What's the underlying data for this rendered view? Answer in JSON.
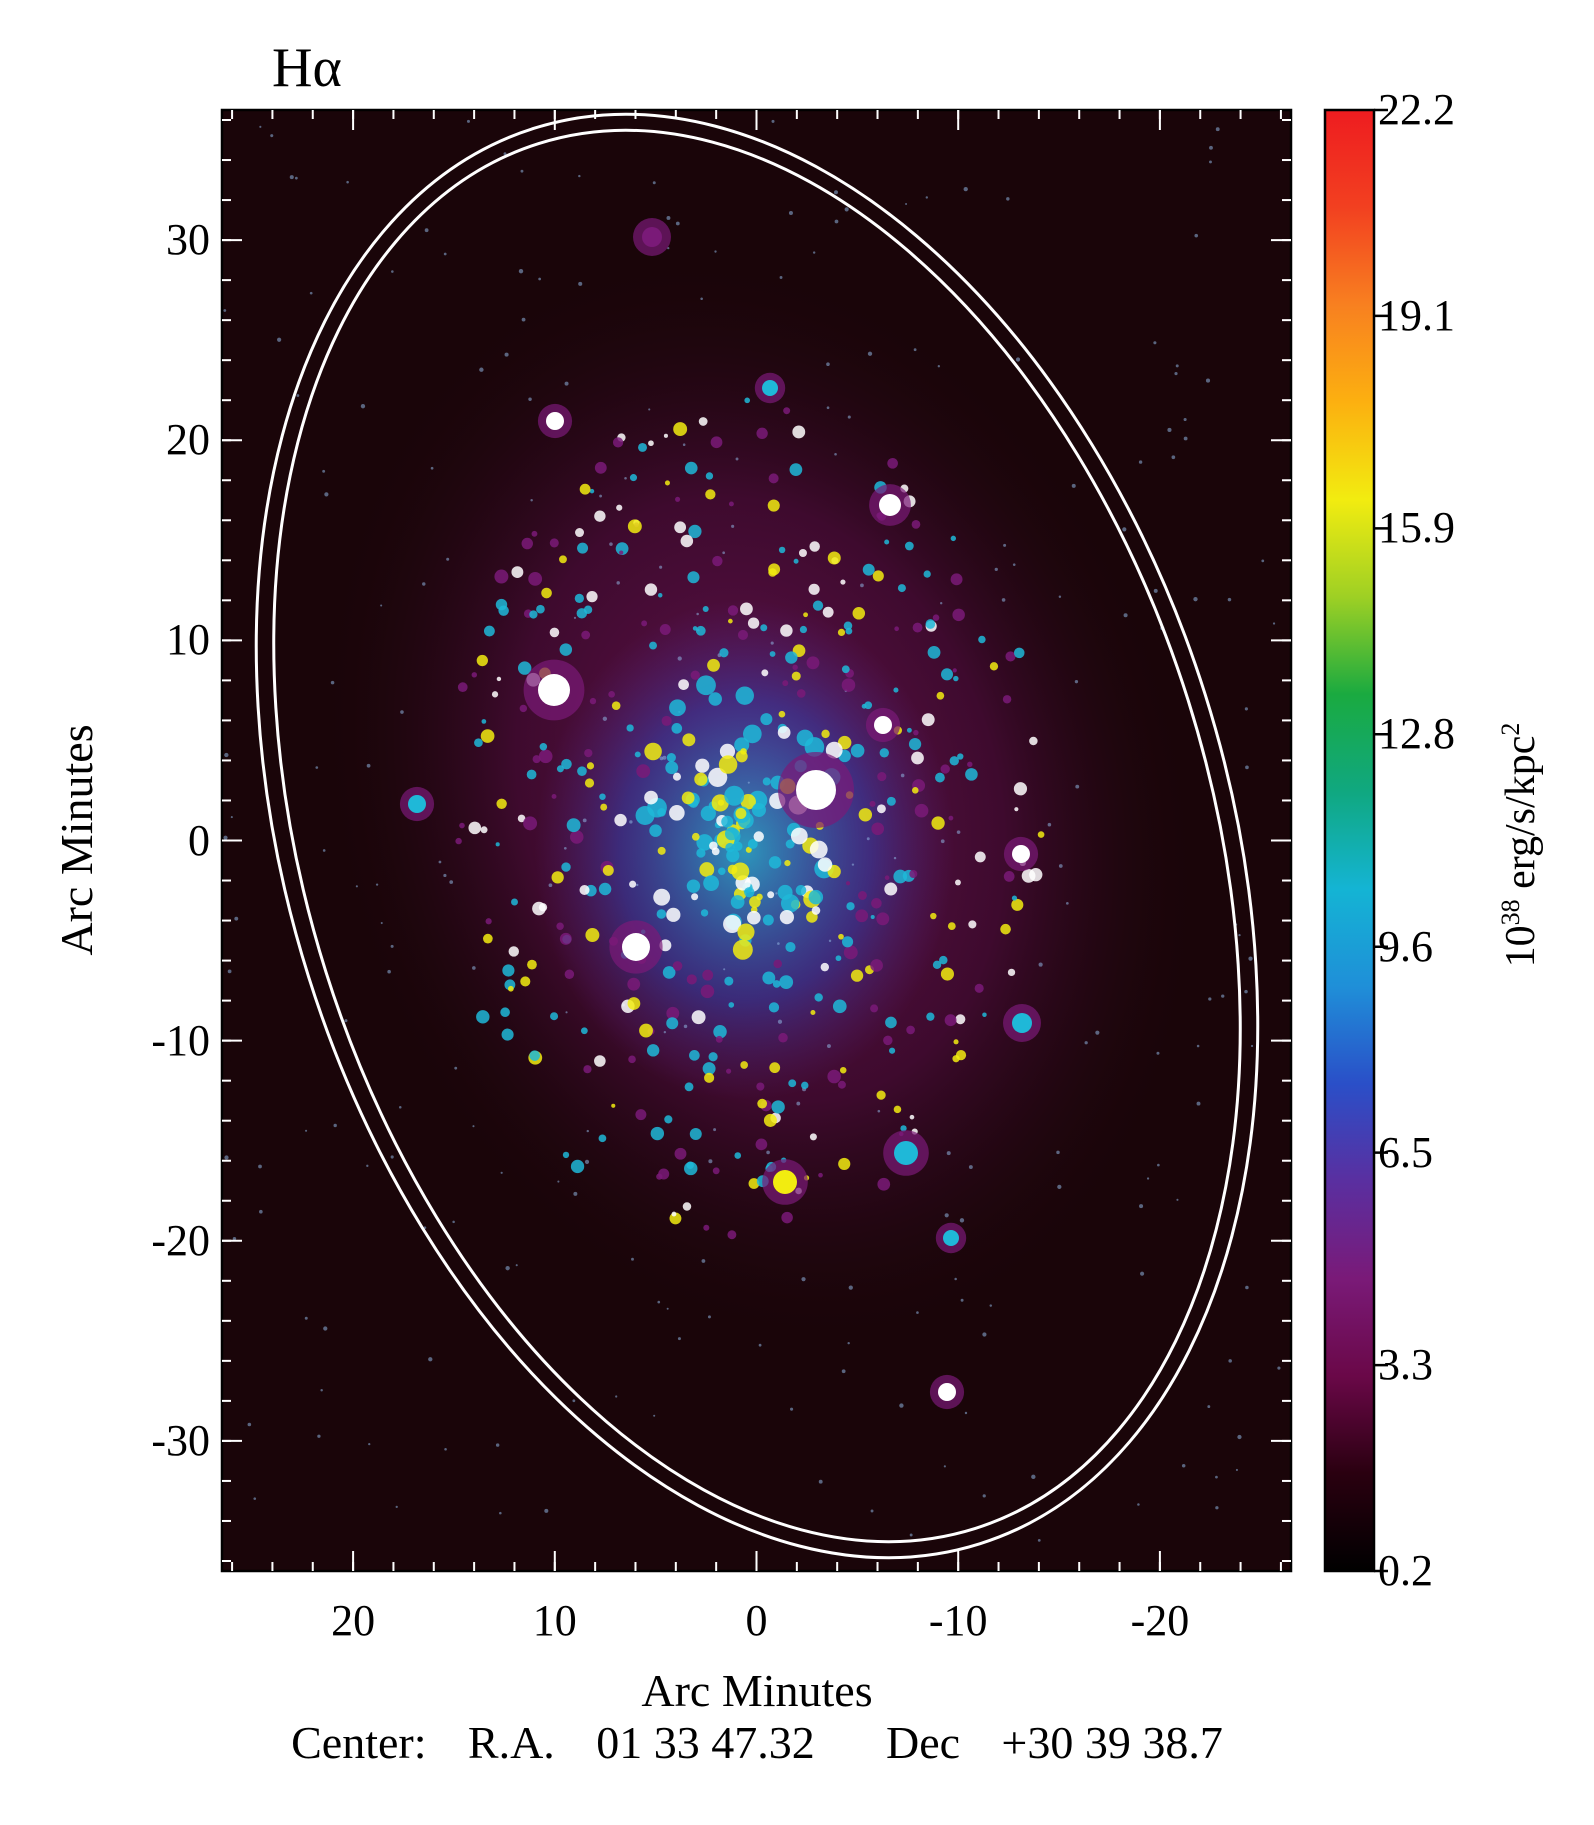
{
  "panel_title": "Hα",
  "xaxis": {
    "label": "Arc Minutes",
    "ticks": [
      "20",
      "10",
      "0",
      "-10",
      "-20"
    ],
    "tick_values": [
      20,
      10,
      0,
      -10,
      -20
    ],
    "range": [
      26.5,
      -26.5
    ]
  },
  "yaxis": {
    "label": "Arc Minutes",
    "ticks": [
      "30",
      "20",
      "10",
      "0",
      "-10",
      "-20",
      "-30"
    ],
    "tick_values": [
      30,
      20,
      10,
      0,
      -10,
      -20,
      -30
    ],
    "range": [
      -36.5,
      36.5
    ]
  },
  "colorbar": {
    "label_base": "10",
    "label_exp": "38",
    "label_unit": " erg/s/kpc",
    "label_unit_exp": "2",
    "ticks": [
      "22.2",
      "19.1",
      "15.9",
      "12.8",
      "9.6",
      "6.5",
      "3.3",
      "0.2"
    ],
    "tick_values": [
      22.2,
      19.1,
      15.9,
      12.8,
      9.6,
      6.5,
      3.3,
      0.2
    ],
    "range": [
      0.2,
      22.2
    ],
    "colors": [
      "#000000",
      "#2a0010",
      "#6a0848",
      "#7a1a78",
      "#5a2fa0",
      "#2a4fc8",
      "#1f8fd8",
      "#14b4d4",
      "#10a880",
      "#1aaa40",
      "#9ed024",
      "#f2ec10",
      "#fcb010",
      "#f88020",
      "#f24020",
      "#ee1c20"
    ]
  },
  "center": {
    "label": "Center:",
    "ra_label": "R.A.",
    "ra_value": "01 33 47.32",
    "dec_label": "Dec",
    "dec_value": "+30 39 38.7"
  },
  "image_colors": {
    "background": "#1a0509",
    "diffuse": "#4a0c3a",
    "ring": "#ffffff",
    "hii_bright": "#ffffff",
    "hii_mid": "#1fb8d8",
    "hii_low": "#7a1a78"
  }
}
